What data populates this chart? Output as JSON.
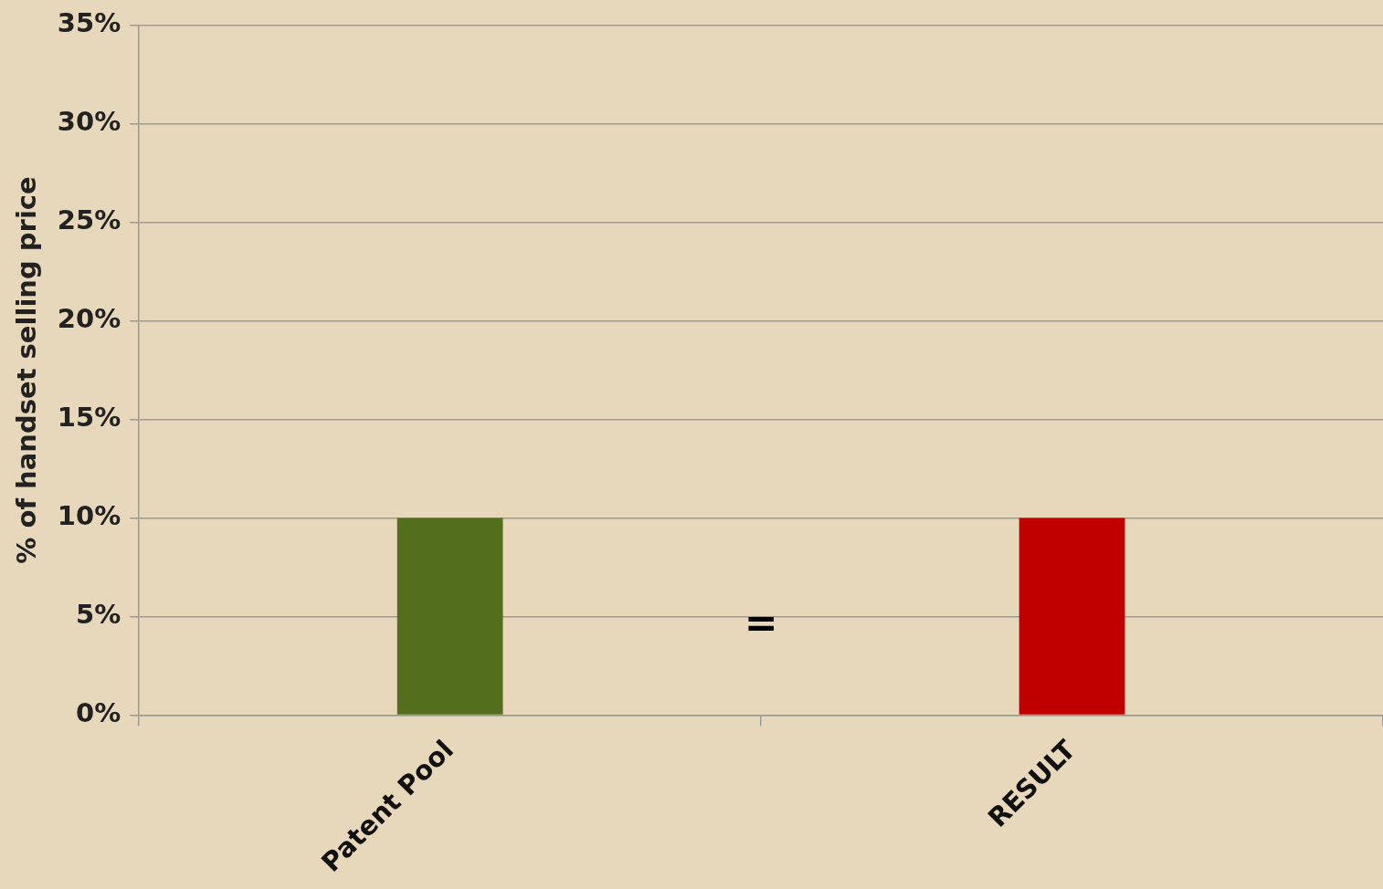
{
  "chart_data": {
    "type": "bar",
    "ylabel": "% of handset selling price",
    "categories": [
      "Patent Pool",
      "RESULT"
    ],
    "values": [
      10,
      10
    ],
    "colors": [
      "#536f1e",
      "#c00000"
    ],
    "ylim": [
      0,
      35
    ],
    "yticks": [
      {
        "value": 0,
        "label": "0%"
      },
      {
        "value": 5,
        "label": "5%"
      },
      {
        "value": 10,
        "label": "10%"
      },
      {
        "value": 15,
        "label": "15%"
      },
      {
        "value": 20,
        "label": "20%"
      },
      {
        "value": 25,
        "label": "25%"
      },
      {
        "value": 30,
        "label": "30%"
      },
      {
        "value": 35,
        "label": "35%"
      }
    ],
    "grid": "y",
    "legend": false,
    "annotations": [
      "="
    ]
  }
}
